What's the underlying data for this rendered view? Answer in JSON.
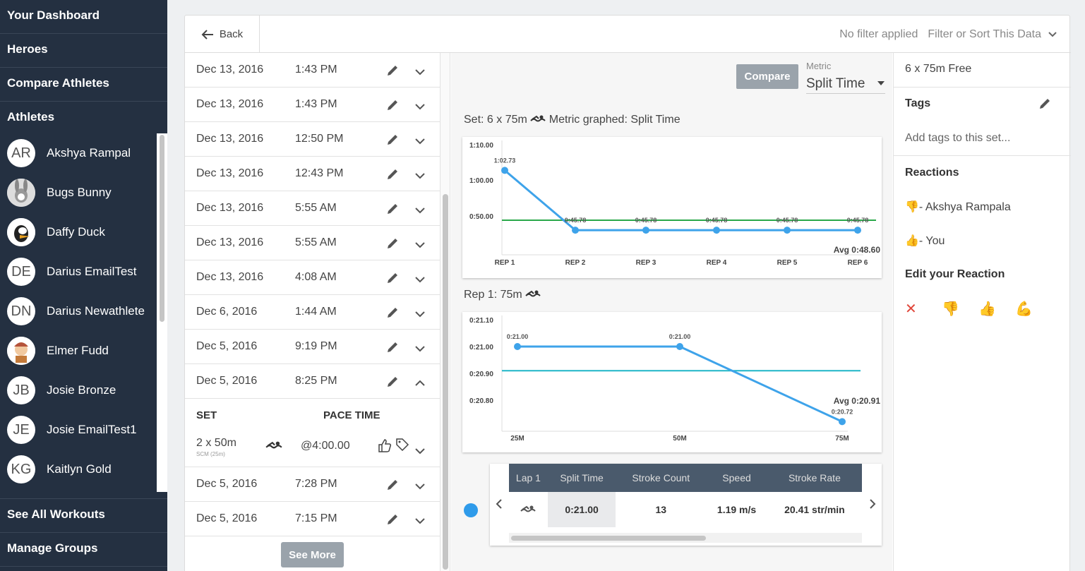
{
  "sidebar": {
    "nav_top": [
      "Your Dashboard",
      "Heroes",
      "Compare Athletes",
      "Athletes"
    ],
    "athletes": [
      {
        "initials": "AR",
        "name": "Akshya Rampal",
        "avatar": "initials"
      },
      {
        "initials": "",
        "name": "Bugs Bunny",
        "avatar": "cartoon-icon"
      },
      {
        "initials": "",
        "name": "Daffy Duck",
        "avatar": "cartoon-icon"
      },
      {
        "initials": "DE",
        "name": "Darius EmailTest",
        "avatar": "initials"
      },
      {
        "initials": "DN",
        "name": "Darius Newathlete",
        "avatar": "initials"
      },
      {
        "initials": "",
        "name": "Elmer Fudd",
        "avatar": "cartoon-icon"
      },
      {
        "initials": "JB",
        "name": "Josie Bronze",
        "avatar": "initials"
      },
      {
        "initials": "JE",
        "name": "Josie EmailTest1",
        "avatar": "initials"
      },
      {
        "initials": "KG",
        "name": "Kaitlyn Gold",
        "avatar": "initials"
      }
    ],
    "nav_bottom": [
      "See All Workouts",
      "Manage Groups"
    ]
  },
  "topbar": {
    "back_label": "Back",
    "filter_status": "No filter applied",
    "filter_label": "Filter or Sort This Data"
  },
  "workouts": [
    {
      "date": "Dec 13, 2016",
      "time": "1:43 PM"
    },
    {
      "date": "Dec 13, 2016",
      "time": "1:43 PM"
    },
    {
      "date": "Dec 13, 2016",
      "time": "12:50 PM"
    },
    {
      "date": "Dec 13, 2016",
      "time": "12:43 PM"
    },
    {
      "date": "Dec 13, 2016",
      "time": "5:55 AM"
    },
    {
      "date": "Dec 13, 2016",
      "time": "5:55 AM"
    },
    {
      "date": "Dec 13, 2016",
      "time": "4:08 AM"
    },
    {
      "date": "Dec 6, 2016",
      "time": "1:44 AM"
    },
    {
      "date": "Dec 5, 2016",
      "time": "9:19 PM"
    },
    {
      "date": "Dec 5, 2016",
      "time": "8:25 PM"
    },
    {
      "date": "Dec 5, 2016",
      "time": "7:28 PM"
    },
    {
      "date": "Dec 5, 2016",
      "time": "7:15 PM"
    }
  ],
  "expanded": {
    "set_header": "SET",
    "pace_header": "PACE TIME",
    "set_label": "2 x 50m",
    "set_sub": "SCM (25m)",
    "pace": "@4:00.00"
  },
  "see_more_label": "See More",
  "compare_label": "Compare",
  "metric": {
    "label": "Metric",
    "value": "Split Time"
  },
  "chart1_title": "Set: 6 x 75m",
  "chart1_title_suffix": "Metric graphed: Split Time",
  "chart2_title": "Rep 1: 75m",
  "chart_data": [
    {
      "type": "line",
      "categories": [
        "REP 1",
        "REP 2",
        "REP 3",
        "REP 4",
        "REP 5",
        "REP 6"
      ],
      "values": [
        62.73,
        45.78,
        45.78,
        45.78,
        45.78,
        45.78
      ],
      "point_labels": [
        "1:02.73",
        "0:45.78",
        "0:45.78",
        "0:45.78",
        "0:45.78",
        "0:45.78"
      ],
      "yticks": [
        "1:10.00",
        "1:00.00",
        "0:50.00"
      ],
      "ylim": [
        40,
        70
      ],
      "avg": 48.6,
      "avg_label": "Avg 0:48.60",
      "line_color": "#3ea3ea",
      "avg_color": "#2aa84a"
    },
    {
      "type": "line",
      "categories": [
        "25M",
        "50M",
        "75M"
      ],
      "values": [
        21.0,
        21.0,
        20.72
      ],
      "point_labels": [
        "0:21.00",
        "0:21.00",
        "0:20.72"
      ],
      "yticks": [
        "0:21.10",
        "0:21.00",
        "0:20.90",
        "0:20.80"
      ],
      "ylim": [
        20.7,
        21.1
      ],
      "avg": 20.91,
      "avg_label": "Avg 0:20.91",
      "line_color": "#3ea3ea",
      "avg_color": "#1fb6c7"
    }
  ],
  "lap_table": {
    "headers": [
      "Lap 1",
      "Split Time",
      "Stroke Count",
      "Speed",
      "Stroke Rate"
    ],
    "values": [
      "",
      "0:21.00",
      "13",
      "1.19 m/s",
      "20.41 str/min"
    ]
  },
  "right": {
    "set_title": "6 x 75m Free",
    "tags_label": "Tags",
    "tags_placeholder": "Add tags to this set...",
    "reactions_label": "Reactions",
    "reactions": [
      {
        "emoji": "👎",
        "text": "- Akshya Rampala"
      },
      {
        "emoji": "👍",
        "text": "- You"
      }
    ],
    "edit_label": "Edit your Reaction",
    "reaction_options": [
      "✕",
      "👎",
      "👍",
      "💪"
    ]
  }
}
